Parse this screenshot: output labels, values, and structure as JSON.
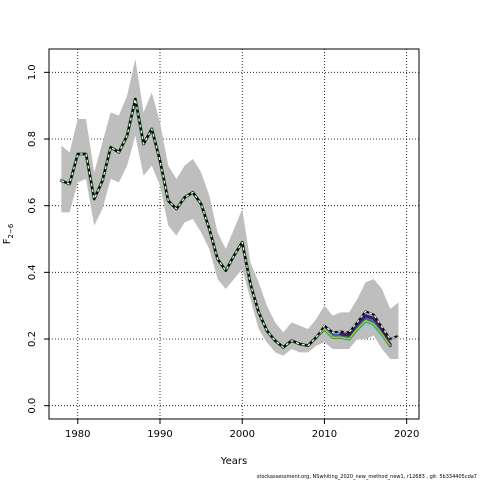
{
  "chart_data": {
    "type": "line",
    "xlabel": "Years",
    "ylabel": "F",
    "ylabel_subscript": "2−6",
    "xlim": [
      1976.5,
      2021.5
    ],
    "ylim": [
      -0.04,
      1.07
    ],
    "xticks": [
      1980,
      1990,
      2000,
      2010,
      2020
    ],
    "yticks": [
      0.0,
      0.2,
      0.4,
      0.6,
      0.8,
      1.0
    ],
    "ytick_labels": [
      "0.0",
      "0.2",
      "0.4",
      "0.6",
      "0.8",
      "1.0"
    ],
    "grid": true,
    "band": {
      "color": "#bebebe",
      "x": [
        1978,
        1979,
        1980,
        1981,
        1982,
        1983,
        1984,
        1985,
        1986,
        1987,
        1988,
        1989,
        1990,
        1991,
        1992,
        1993,
        1994,
        1995,
        1996,
        1997,
        1998,
        1999,
        2000,
        2001,
        2002,
        2003,
        2004,
        2005,
        2006,
        2007,
        2008,
        2009,
        2010,
        2011,
        2012,
        2013,
        2014,
        2015,
        2016,
        2017,
        2018,
        2019
      ],
      "lower": [
        0.58,
        0.58,
        0.67,
        0.68,
        0.54,
        0.59,
        0.68,
        0.67,
        0.72,
        0.81,
        0.69,
        0.72,
        0.66,
        0.54,
        0.51,
        0.55,
        0.56,
        0.52,
        0.47,
        0.38,
        0.35,
        0.38,
        0.41,
        0.32,
        0.23,
        0.19,
        0.16,
        0.15,
        0.17,
        0.16,
        0.16,
        0.18,
        0.19,
        0.17,
        0.17,
        0.17,
        0.2,
        0.2,
        0.21,
        0.17,
        0.14,
        0.14
      ],
      "upper": [
        0.78,
        0.76,
        0.86,
        0.86,
        0.7,
        0.79,
        0.88,
        0.87,
        0.93,
        1.04,
        0.88,
        0.94,
        0.85,
        0.72,
        0.68,
        0.72,
        0.74,
        0.7,
        0.63,
        0.52,
        0.47,
        0.53,
        0.59,
        0.43,
        0.37,
        0.3,
        0.25,
        0.22,
        0.25,
        0.24,
        0.23,
        0.26,
        0.3,
        0.27,
        0.28,
        0.28,
        0.32,
        0.37,
        0.38,
        0.35,
        0.29,
        0.31
      ]
    },
    "retro_band": {
      "color": "#7fcfd8",
      "x": [
        2010,
        2011,
        2012,
        2013,
        2014,
        2015,
        2016,
        2017,
        2018
      ],
      "lower": [
        0.22,
        0.2,
        0.2,
        0.19,
        0.22,
        0.24,
        0.23,
        0.2,
        0.18
      ],
      "upper": [
        0.24,
        0.22,
        0.22,
        0.21,
        0.25,
        0.27,
        0.26,
        0.23,
        0.19
      ]
    },
    "series": [
      {
        "color": "#1b6f2f",
        "x": [
          1978,
          1979,
          1980,
          1981,
          1982,
          1983,
          1984,
          1985,
          1986,
          1987,
          1988,
          1989,
          1990,
          1991,
          1992,
          1993,
          1994,
          1995,
          1996,
          1997,
          1998,
          1999,
          2000,
          2001,
          2002,
          2003,
          2004,
          2005,
          2006,
          2007,
          2008,
          2009,
          2010
        ],
        "y": [
          0.675,
          0.665,
          0.755,
          0.755,
          0.62,
          0.675,
          0.775,
          0.76,
          0.81,
          0.92,
          0.785,
          0.83,
          0.735,
          0.615,
          0.59,
          0.625,
          0.64,
          0.605,
          0.53,
          0.44,
          0.405,
          0.45,
          0.49,
          0.365,
          0.28,
          0.225,
          0.195,
          0.175,
          0.195,
          0.185,
          0.18,
          0.205,
          0.23
        ]
      },
      {
        "color": "#2b8a3e",
        "x": [
          2010,
          2011,
          2012,
          2013,
          2014,
          2015,
          2016,
          2017,
          2018
        ],
        "y": [
          0.23,
          0.205,
          0.205,
          0.2,
          0.23,
          0.255,
          0.245,
          0.215,
          0.18
        ]
      },
      {
        "color": "#4b5fb0",
        "x": [
          2010,
          2011,
          2012,
          2013,
          2014,
          2015,
          2016,
          2017,
          2018
        ],
        "y": [
          0.232,
          0.21,
          0.212,
          0.205,
          0.238,
          0.262,
          0.252,
          0.222,
          0.185
        ]
      },
      {
        "color": "#3d1f63",
        "x": [
          2012,
          2013,
          2014,
          2015,
          2016,
          2017,
          2018
        ],
        "y": [
          0.215,
          0.212,
          0.245,
          0.27,
          0.262,
          0.23,
          0.18
        ]
      },
      {
        "color": "#9acd32",
        "x": [
          1978,
          1979,
          1980,
          1981,
          1982,
          1983,
          1984,
          1985,
          1986,
          1987,
          1988,
          1989,
          1990,
          1991,
          1992,
          1993,
          1994,
          1995,
          1996,
          1997,
          1998,
          1999,
          2000,
          2001,
          2002,
          2003,
          2004,
          2005,
          2006,
          2007,
          2008,
          2009,
          2010,
          2011,
          2012,
          2013,
          2014,
          2015,
          2016,
          2017,
          2018
        ],
        "y": [
          0.675,
          0.665,
          0.755,
          0.755,
          0.62,
          0.675,
          0.775,
          0.76,
          0.81,
          0.92,
          0.785,
          0.83,
          0.735,
          0.615,
          0.59,
          0.625,
          0.64,
          0.605,
          0.53,
          0.44,
          0.405,
          0.45,
          0.49,
          0.365,
          0.28,
          0.225,
          0.195,
          0.175,
          0.195,
          0.185,
          0.18,
          0.205,
          0.23,
          0.205,
          0.205,
          0.2,
          0.23,
          0.255,
          0.245,
          0.215,
          0.18
        ]
      }
    ],
    "dashed_series": {
      "line_color": "#000000",
      "dash_color": "#ffffff",
      "x": [
        1978,
        1979,
        1980,
        1981,
        1982,
        1983,
        1984,
        1985,
        1986,
        1987,
        1988,
        1989,
        1990,
        1991,
        1992,
        1993,
        1994,
        1995,
        1996,
        1997,
        1998,
        1999,
        2000,
        2001,
        2002,
        2003,
        2004,
        2005,
        2006,
        2007,
        2008,
        2009,
        2010,
        2011,
        2012,
        2013,
        2014,
        2015,
        2016,
        2017,
        2018,
        2019
      ],
      "y": [
        0.675,
        0.665,
        0.755,
        0.755,
        0.62,
        0.675,
        0.775,
        0.76,
        0.81,
        0.92,
        0.785,
        0.83,
        0.735,
        0.615,
        0.59,
        0.625,
        0.64,
        0.605,
        0.53,
        0.44,
        0.405,
        0.45,
        0.49,
        0.365,
        0.28,
        0.225,
        0.195,
        0.175,
        0.195,
        0.185,
        0.18,
        0.205,
        0.24,
        0.22,
        0.222,
        0.22,
        0.25,
        0.283,
        0.273,
        0.235,
        0.2,
        0.21
      ]
    }
  },
  "footer_text": "stockassessment.org, NSwhiting_2020_new_method_new1, r12683 , git: 5b334405cda7"
}
